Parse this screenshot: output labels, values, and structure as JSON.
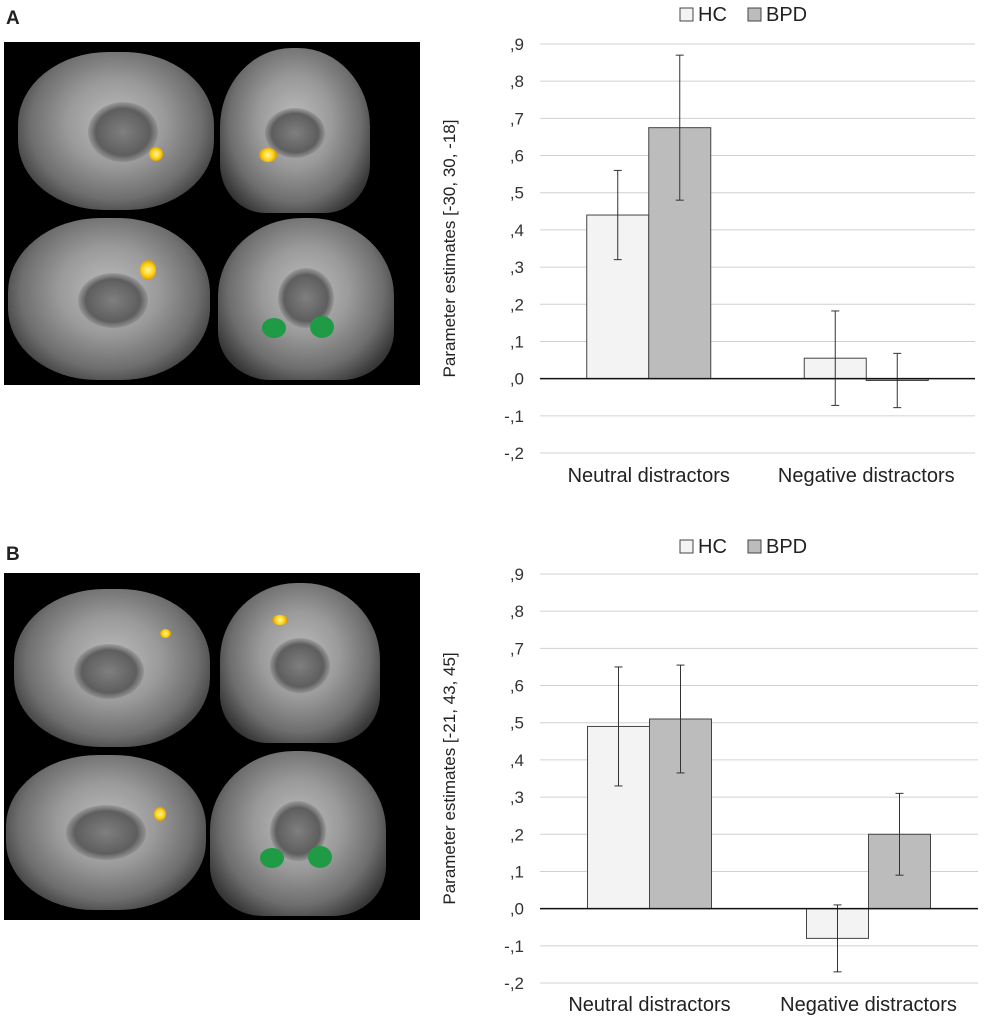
{
  "panels": [
    {
      "letter": "A",
      "chart_data": {
        "type": "bar",
        "categories": [
          "Neutral distractors",
          "Negative distractors"
        ],
        "series": [
          {
            "name": "HC",
            "values": [
              0.44,
              0.055
            ],
            "errors": [
              0.12,
              0.127
            ]
          },
          {
            "name": "BPD",
            "values": [
              0.675,
              -0.005
            ],
            "errors": [
              0.195,
              0.073
            ]
          }
        ],
        "ylabel": "Parameter estimates [-30, 30, -18]",
        "xlabel": "",
        "ylim": [
          -0.2,
          0.9
        ],
        "yticks": [
          0.9,
          0.8,
          0.7,
          0.6,
          0.5,
          0.4,
          0.3,
          0.2,
          0.1,
          0.0,
          -0.1,
          -0.2
        ],
        "ytick_labels": [
          ",9",
          ",8",
          ",7",
          ",6",
          ",5",
          ",4",
          ",3",
          ",2",
          ",1",
          ",0",
          "-,1",
          "-,2"
        ],
        "series_colors": [
          "#f3f3f3",
          "#bcbcbc"
        ],
        "grid": true,
        "legend": "top-center"
      }
    },
    {
      "letter": "B",
      "chart_data": {
        "type": "bar",
        "categories": [
          "Neutral distractors",
          "Negative distractors"
        ],
        "series": [
          {
            "name": "HC",
            "values": [
              0.49,
              -0.08
            ],
            "errors": [
              0.16,
              0.09
            ]
          },
          {
            "name": "BPD",
            "values": [
              0.51,
              0.2
            ],
            "errors": [
              0.145,
              0.11
            ]
          }
        ],
        "ylabel": "Parameter estimates [-21, 43, 45]",
        "xlabel": "",
        "ylim": [
          -0.2,
          0.9
        ],
        "yticks": [
          0.9,
          0.8,
          0.7,
          0.6,
          0.5,
          0.4,
          0.3,
          0.2,
          0.1,
          0.0,
          -0.1,
          -0.2
        ],
        "ytick_labels": [
          ",9",
          ",8",
          ",7",
          ",6",
          ",5",
          ",4",
          ",3",
          ",2",
          ",1",
          ",0",
          "-,1",
          "-,2"
        ],
        "series_colors": [
          "#f3f3f3",
          "#bcbcbc"
        ],
        "grid": true,
        "legend": "top-center"
      }
    }
  ]
}
